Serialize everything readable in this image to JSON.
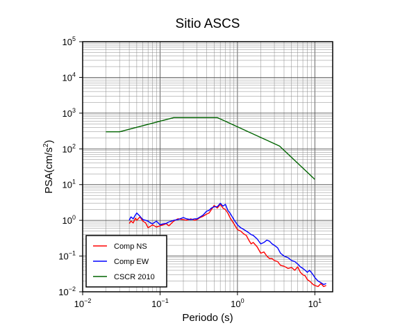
{
  "chart_data": {
    "type": "line",
    "title": "Sitio ASCS",
    "xlabel": "Periodo (s)",
    "ylabel_base": "PSA(cm/s",
    "ylabel_sup": "2",
    "ylabel_end": ")",
    "xscale": "log",
    "yscale": "log",
    "xlim": [
      0.01,
      17
    ],
    "ylim": [
      0.01,
      100000
    ],
    "grid": true,
    "legend_position": "bottom-left",
    "x_ticks": [
      {
        "base": "10",
        "exp": "−2",
        "value": 0.01
      },
      {
        "base": "10",
        "exp": "−1",
        "value": 0.1
      },
      {
        "base": "10",
        "exp": "0",
        "value": 1
      },
      {
        "base": "10",
        "exp": "1",
        "value": 10
      }
    ],
    "y_ticks": [
      {
        "base": "10",
        "exp": "−2",
        "value": 0.01
      },
      {
        "base": "10",
        "exp": "−1",
        "value": 0.1
      },
      {
        "base": "10",
        "exp": "0",
        "value": 1
      },
      {
        "base": "10",
        "exp": "1",
        "value": 10
      },
      {
        "base": "10",
        "exp": "2",
        "value": 100
      },
      {
        "base": "10",
        "exp": "3",
        "value": 1000
      },
      {
        "base": "10",
        "exp": "4",
        "value": 10000
      },
      {
        "base": "10",
        "exp": "5",
        "value": 100000
      }
    ],
    "series": [
      {
        "name": "Comp NS",
        "color": "#ff0000",
        "x": [
          0.04,
          0.042,
          0.045,
          0.048,
          0.05,
          0.055,
          0.06,
          0.065,
          0.07,
          0.075,
          0.08,
          0.09,
          0.1,
          0.11,
          0.12,
          0.13,
          0.15,
          0.17,
          0.2,
          0.22,
          0.25,
          0.28,
          0.3,
          0.33,
          0.36,
          0.4,
          0.43,
          0.46,
          0.5,
          0.55,
          0.6,
          0.65,
          0.7,
          0.75,
          0.8,
          0.9,
          1.0,
          1.1,
          1.2,
          1.3,
          1.4,
          1.5,
          1.6,
          1.8,
          2.0,
          2.2,
          2.4,
          2.6,
          2.8,
          3.0,
          3.3,
          3.6,
          4.0,
          4.5,
          5.0,
          5.5,
          6.0,
          6.5,
          7.0,
          7.5,
          8.0,
          8.5,
          9.0,
          9.5,
          10,
          11,
          12,
          13,
          14
        ],
        "y": [
          0.82,
          0.95,
          0.85,
          1.15,
          1.0,
          1.25,
          0.95,
          0.85,
          0.62,
          0.68,
          0.75,
          0.65,
          0.7,
          0.75,
          0.8,
          0.7,
          0.95,
          1.1,
          1.05,
          1.0,
          1.1,
          1.0,
          1.05,
          1.2,
          1.3,
          1.5,
          1.6,
          2.0,
          2.6,
          2.2,
          2.8,
          2.2,
          2.0,
          1.6,
          1.2,
          0.8,
          0.55,
          0.5,
          0.42,
          0.38,
          0.28,
          0.22,
          0.24,
          0.18,
          0.12,
          0.13,
          0.1,
          0.085,
          0.085,
          0.075,
          0.07,
          0.055,
          0.052,
          0.045,
          0.048,
          0.04,
          0.05,
          0.035,
          0.03,
          0.028,
          0.022,
          0.02,
          0.018,
          0.016,
          0.015,
          0.014,
          0.017,
          0.014,
          0.015
        ]
      },
      {
        "name": "Comp EW",
        "color": "#0000ff",
        "x": [
          0.04,
          0.042,
          0.045,
          0.048,
          0.05,
          0.055,
          0.06,
          0.065,
          0.07,
          0.075,
          0.08,
          0.09,
          0.1,
          0.11,
          0.12,
          0.13,
          0.15,
          0.17,
          0.2,
          0.22,
          0.25,
          0.28,
          0.3,
          0.33,
          0.36,
          0.4,
          0.43,
          0.46,
          0.5,
          0.55,
          0.6,
          0.65,
          0.7,
          0.75,
          0.8,
          0.9,
          1.0,
          1.1,
          1.2,
          1.3,
          1.4,
          1.5,
          1.6,
          1.8,
          2.0,
          2.2,
          2.4,
          2.6,
          2.8,
          3.0,
          3.3,
          3.6,
          4.0,
          4.5,
          5.0,
          5.5,
          6.0,
          6.5,
          7.0,
          7.5,
          8.0,
          8.5,
          9.0,
          9.5,
          10,
          11,
          12,
          13,
          14
        ],
        "y": [
          1.0,
          1.25,
          1.1,
          1.4,
          1.6,
          1.3,
          1.05,
          1.0,
          0.95,
          0.85,
          0.8,
          0.95,
          0.75,
          0.8,
          0.82,
          0.9,
          1.0,
          1.05,
          1.2,
          1.1,
          1.05,
          1.1,
          1.1,
          1.25,
          1.4,
          1.8,
          1.9,
          2.2,
          2.4,
          2.4,
          3.0,
          2.5,
          2.8,
          1.9,
          1.6,
          1.05,
          0.75,
          0.62,
          0.56,
          0.5,
          0.45,
          0.4,
          0.38,
          0.3,
          0.22,
          0.24,
          0.28,
          0.26,
          0.22,
          0.2,
          0.17,
          0.12,
          0.1,
          0.09,
          0.075,
          0.07,
          0.06,
          0.05,
          0.045,
          0.04,
          0.035,
          0.04,
          0.035,
          0.03,
          0.025,
          0.02,
          0.018,
          0.016,
          0.017
        ]
      },
      {
        "name": "CSCR 2010",
        "color": "#006400",
        "x": [
          0.02,
          0.03,
          0.15,
          0.55,
          3.5,
          10
        ],
        "y": [
          300,
          300,
          750,
          750,
          120,
          14
        ]
      }
    ]
  }
}
